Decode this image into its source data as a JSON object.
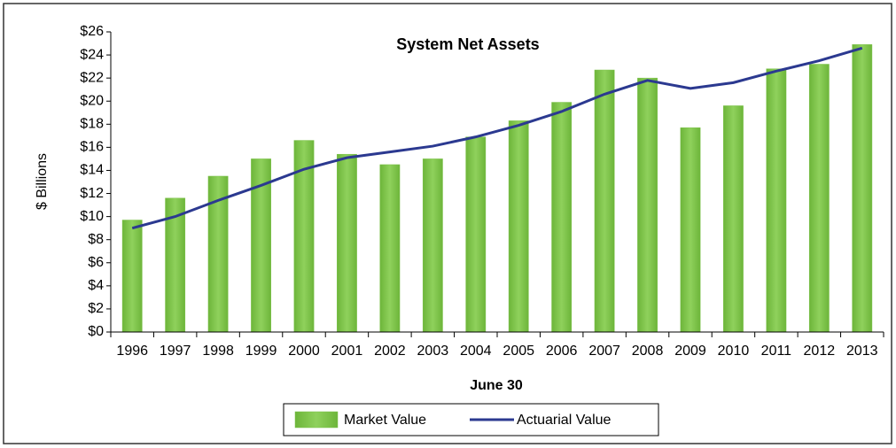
{
  "chart_data": {
    "type": "bar",
    "title": "System Net Assets",
    "y_label": "$ Billions",
    "x_label": "June 30",
    "categories": [
      "1996",
      "1997",
      "1998",
      "1999",
      "2000",
      "2001",
      "2002",
      "2003",
      "2004",
      "2005",
      "2006",
      "2007",
      "2008",
      "2009",
      "2010",
      "2011",
      "2012",
      "2013"
    ],
    "series": [
      {
        "name": "Market Value",
        "type": "bar",
        "color": "#7cc24a",
        "values": [
          9.7,
          11.6,
          13.5,
          15.0,
          16.6,
          15.4,
          14.5,
          15.0,
          16.9,
          18.3,
          19.9,
          22.7,
          22.0,
          17.7,
          19.6,
          22.8,
          23.2,
          24.9
        ]
      },
      {
        "name": "Actuarial Value",
        "type": "line",
        "color": "#2b3990",
        "values": [
          9.0,
          10.0,
          11.4,
          12.7,
          14.1,
          15.1,
          15.6,
          16.1,
          16.9,
          17.9,
          19.1,
          20.6,
          21.8,
          21.1,
          21.6,
          22.6,
          23.5,
          24.6
        ]
      }
    ],
    "ylim": [
      0,
      26
    ],
    "yticks": [
      {
        "value": 0,
        "label": "$0"
      },
      {
        "value": 2,
        "label": "$2"
      },
      {
        "value": 4,
        "label": "$4"
      },
      {
        "value": 6,
        "label": "$6"
      },
      {
        "value": 8,
        "label": "$8"
      },
      {
        "value": 10,
        "label": "$10"
      },
      {
        "value": 12,
        "label": "$12"
      },
      {
        "value": 14,
        "label": "$14"
      },
      {
        "value": 16,
        "label": "$16"
      },
      {
        "value": 18,
        "label": "$18"
      },
      {
        "value": 20,
        "label": "$20"
      },
      {
        "value": 22,
        "label": "$22"
      },
      {
        "value": 24,
        "label": "$24"
      },
      {
        "value": 26,
        "label": "$26"
      }
    ],
    "grid": false,
    "legend": "bottom"
  }
}
